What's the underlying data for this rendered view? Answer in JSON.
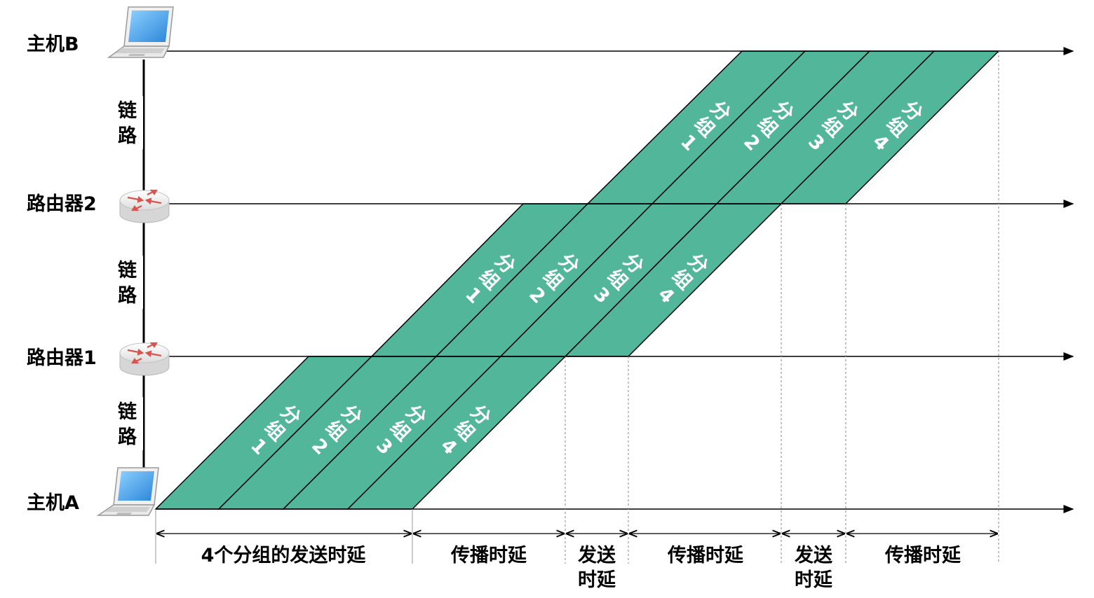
{
  "nodes": {
    "host_b": "主机B",
    "router2": "路由器2",
    "router1": "路由器1",
    "host_a": "主机A"
  },
  "links": {
    "top": [
      "链",
      "路"
    ],
    "middle": [
      "链",
      "路"
    ],
    "bottom": [
      "链",
      "路"
    ]
  },
  "packets": {
    "word": [
      "分",
      "组"
    ],
    "numbers": [
      "1",
      "2",
      "3",
      "4"
    ],
    "fill_color": "#52b79a"
  },
  "delays": {
    "d1": "4个分组的发送时延",
    "d2": "传播时延",
    "d3": [
      "发送",
      "时延"
    ],
    "d4": "传播时延",
    "d5": [
      "发送",
      "时延"
    ],
    "d6": "传播时延"
  },
  "icons": {
    "host": "laptop-icon",
    "router": "router-icon"
  }
}
